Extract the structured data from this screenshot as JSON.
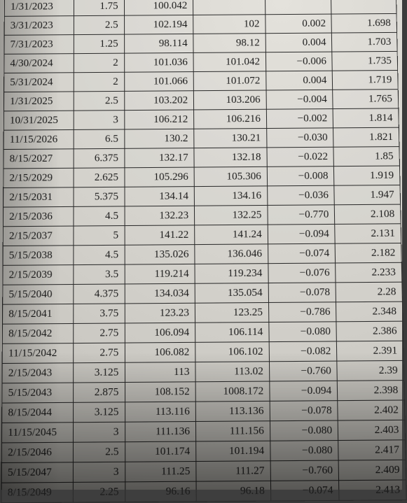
{
  "table": {
    "columns": 6,
    "col_align": [
      "left",
      "right",
      "right",
      "right",
      "right",
      "right"
    ],
    "border_color": "#2a2a2a",
    "text_color": "#1a1a1a",
    "font_family": "Times New Roman",
    "font_size_pt": 11,
    "background_color": "#d8d6d0",
    "rows": [
      [
        "1/31/2023",
        "1.75",
        "100.042",
        "",
        "",
        ""
      ],
      [
        "3/31/2023",
        "2.5",
        "102.194",
        "102",
        "0.002",
        "1.698"
      ],
      [
        "7/31/2023",
        "1.25",
        "98.114",
        "98.12",
        "0.004",
        "1.703"
      ],
      [
        "4/30/2024",
        "2",
        "101.036",
        "101.042",
        "−0.006",
        "1.735"
      ],
      [
        "5/31/2024",
        "2",
        "101.066",
        "101.072",
        "0.004",
        "1.719"
      ],
      [
        "1/31/2025",
        "2.5",
        "103.202",
        "103.206",
        "−0.004",
        "1.765"
      ],
      [
        "10/31/2025",
        "3",
        "106.212",
        "106.216",
        "−0.002",
        "1.814"
      ],
      [
        "11/15/2026",
        "6.5",
        "130.2",
        "130.21",
        "−0.030",
        "1.821"
      ],
      [
        "8/15/2027",
        "6.375",
        "132.17",
        "132.18",
        "−0.022",
        "1.85"
      ],
      [
        "2/15/2029",
        "2.625",
        "105.296",
        "105.306",
        "−0.008",
        "1.919"
      ],
      [
        "2/15/2031",
        "5.375",
        "134.14",
        "134.16",
        "−0.036",
        "1.947"
      ],
      [
        "2/15/2036",
        "4.5",
        "132.23",
        "132.25",
        "−0.770",
        "2.108"
      ],
      [
        "2/15/2037",
        "5",
        "141.22",
        "141.24",
        "−0.094",
        "2.131"
      ],
      [
        "5/15/2038",
        "4.5",
        "135.026",
        "136.046",
        "−0.074",
        "2.182"
      ],
      [
        "2/15/2039",
        "3.5",
        "119.214",
        "119.234",
        "−0.076",
        "2.233"
      ],
      [
        "5/15/2040",
        "4.375",
        "134.034",
        "135.054",
        "−0.078",
        "2.28"
      ],
      [
        "8/15/2041",
        "3.75",
        "123.23",
        "123.25",
        "−0.786",
        "2.348"
      ],
      [
        "8/15/2042",
        "2.75",
        "106.094",
        "106.114",
        "−0.080",
        "2.386"
      ],
      [
        "11/15/2042",
        "2.75",
        "106.082",
        "106.102",
        "−0.082",
        "2.391"
      ],
      [
        "2/15/2043",
        "3.125",
        "113",
        "113.02",
        "−0.760",
        "2.39"
      ],
      [
        "5/15/2043",
        "2.875",
        "108.152",
        "1008.172",
        "−0.094",
        "2.398"
      ],
      [
        "8/15/2044",
        "3.125",
        "113.116",
        "113.136",
        "−0.078",
        "2.402"
      ],
      [
        "11/15/2045",
        "3",
        "111.136",
        "111.156",
        "−0.080",
        "2.403"
      ],
      [
        "2/15/2046",
        "2.5",
        "101.174",
        "101.194",
        "−0.080",
        "2.417"
      ],
      [
        "5/15/2047",
        "3",
        "111.25",
        "111.27",
        "−0.760",
        "2.409"
      ],
      [
        "8/15/2049",
        "2.25",
        "96.16",
        "96.18",
        "−0.074",
        "2.413"
      ]
    ]
  }
}
